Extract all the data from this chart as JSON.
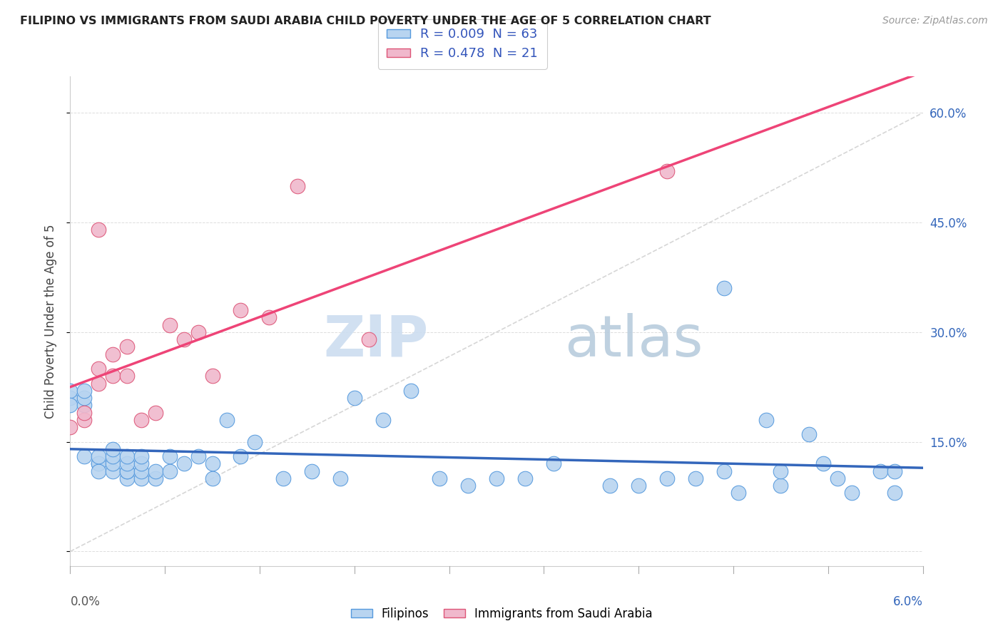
{
  "title": "FILIPINO VS IMMIGRANTS FROM SAUDI ARABIA CHILD POVERTY UNDER THE AGE OF 5 CORRELATION CHART",
  "source": "Source: ZipAtlas.com",
  "ylabel": "Child Poverty Under the Age of 5",
  "y_ticks": [
    0.0,
    0.15,
    0.3,
    0.45,
    0.6
  ],
  "y_tick_labels_right": [
    "",
    "15.0%",
    "30.0%",
    "45.0%",
    "60.0%"
  ],
  "x_lim": [
    0.0,
    0.06
  ],
  "y_lim": [
    -0.02,
    0.65
  ],
  "color_filipino_fill": "#b8d4f0",
  "color_filipino_edge": "#5599dd",
  "color_saudi_fill": "#f0b8cc",
  "color_saudi_edge": "#dd5577",
  "color_line_filipino": "#3366bb",
  "color_line_saudi": "#ee4477",
  "color_diagonal": "#cccccc",
  "watermark_color": "#dde8f5",
  "filipinos_x": [
    0.0,
    0.0,
    0.0,
    0.001,
    0.001,
    0.001,
    0.001,
    0.002,
    0.002,
    0.002,
    0.002,
    0.003,
    0.003,
    0.003,
    0.003,
    0.004,
    0.004,
    0.004,
    0.004,
    0.004,
    0.005,
    0.005,
    0.005,
    0.005,
    0.006,
    0.006,
    0.007,
    0.007,
    0.008,
    0.009,
    0.01,
    0.01,
    0.011,
    0.012,
    0.013,
    0.015,
    0.017,
    0.019,
    0.02,
    0.022,
    0.024,
    0.026,
    0.028,
    0.03,
    0.032,
    0.034,
    0.038,
    0.04,
    0.042,
    0.044,
    0.046,
    0.047,
    0.049,
    0.05,
    0.05,
    0.052,
    0.053,
    0.054,
    0.055,
    0.057,
    0.058,
    0.058,
    0.046
  ],
  "filipinos_y": [
    0.21,
    0.22,
    0.2,
    0.2,
    0.21,
    0.22,
    0.13,
    0.12,
    0.12,
    0.11,
    0.13,
    0.11,
    0.12,
    0.13,
    0.14,
    0.1,
    0.11,
    0.11,
    0.12,
    0.13,
    0.1,
    0.11,
    0.12,
    0.13,
    0.1,
    0.11,
    0.11,
    0.13,
    0.12,
    0.13,
    0.1,
    0.12,
    0.18,
    0.13,
    0.15,
    0.1,
    0.11,
    0.1,
    0.21,
    0.18,
    0.22,
    0.1,
    0.09,
    0.1,
    0.1,
    0.12,
    0.09,
    0.09,
    0.1,
    0.1,
    0.11,
    0.08,
    0.18,
    0.09,
    0.11,
    0.16,
    0.12,
    0.1,
    0.08,
    0.11,
    0.08,
    0.11,
    0.36
  ],
  "saudi_x": [
    0.0,
    0.001,
    0.001,
    0.002,
    0.002,
    0.003,
    0.003,
    0.004,
    0.004,
    0.005,
    0.006,
    0.007,
    0.008,
    0.009,
    0.01,
    0.012,
    0.014,
    0.016,
    0.021,
    0.042,
    0.002
  ],
  "saudi_y": [
    0.17,
    0.18,
    0.19,
    0.23,
    0.25,
    0.24,
    0.27,
    0.24,
    0.28,
    0.18,
    0.19,
    0.31,
    0.29,
    0.3,
    0.24,
    0.33,
    0.32,
    0.5,
    0.29,
    0.52,
    0.44
  ]
}
